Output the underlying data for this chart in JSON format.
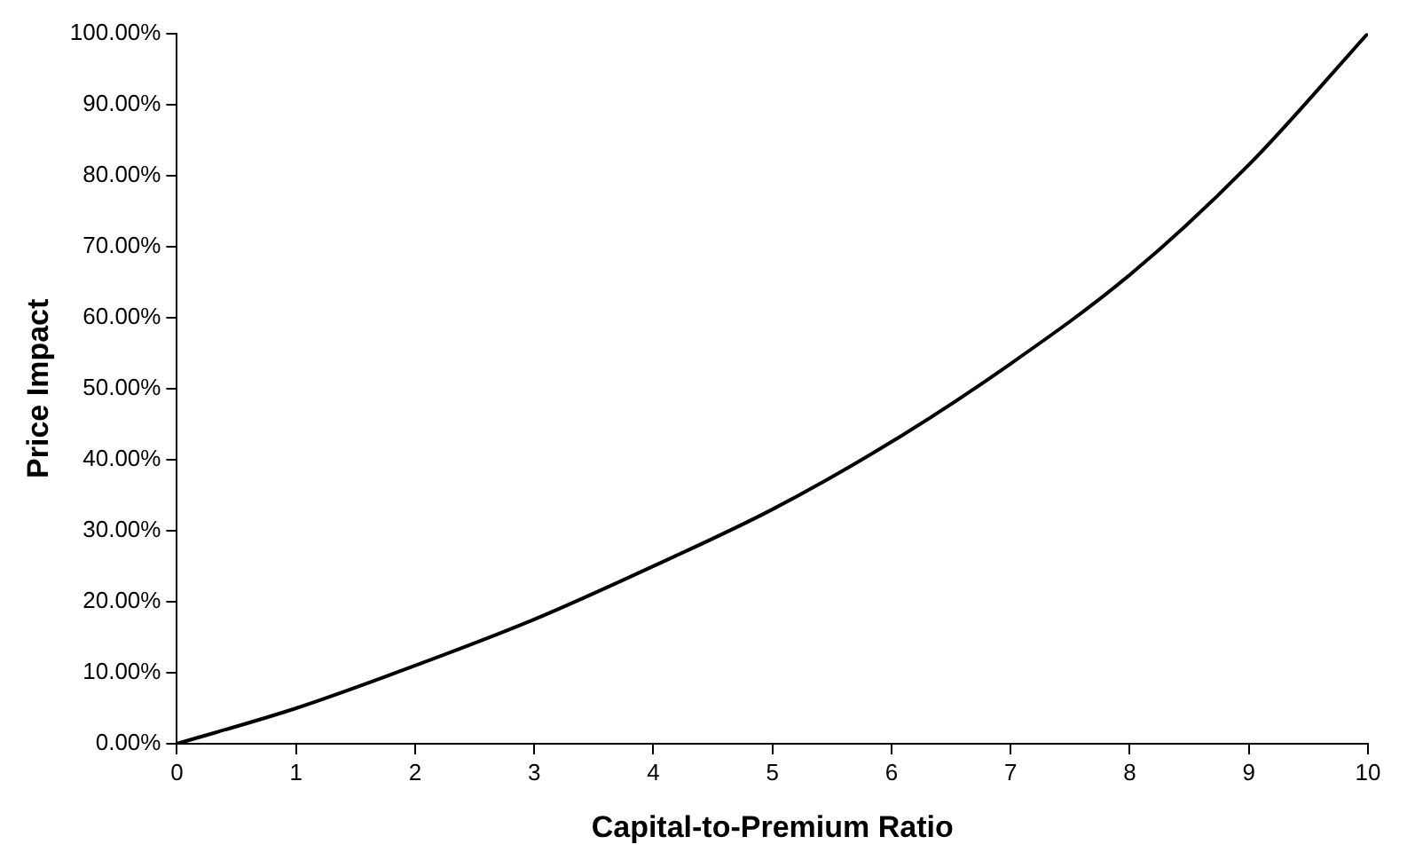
{
  "chart_data": {
    "type": "line",
    "xlabel": "Capital-to-Premium Ratio",
    "ylabel": "Price Impact",
    "x": [
      0,
      1,
      2,
      3,
      4,
      5,
      6,
      7,
      8,
      9,
      10
    ],
    "series": [
      {
        "color": "#000000",
        "values": [
          0,
          5,
          11,
          17.5,
          25,
          33,
          42.5,
          53.5,
          66,
          81.5,
          100
        ]
      }
    ],
    "xlim": [
      0,
      10
    ],
    "xticks": [
      0,
      1,
      2,
      3,
      4,
      5,
      6,
      7,
      8,
      9,
      10
    ],
    "ylim": [
      0,
      100
    ],
    "yticks": [
      {
        "value": 0,
        "label": "0.00%"
      },
      {
        "value": 10,
        "label": "10.00%"
      },
      {
        "value": 20,
        "label": "20.00%"
      },
      {
        "value": 30,
        "label": "30.00%"
      },
      {
        "value": 40,
        "label": "40.00%"
      },
      {
        "value": 50,
        "label": "50.00%"
      },
      {
        "value": 60,
        "label": "60.00%"
      },
      {
        "value": 70,
        "label": "70.00%"
      },
      {
        "value": 80,
        "label": "80.00%"
      },
      {
        "value": 90,
        "label": "90.00%"
      },
      {
        "value": 100,
        "label": "100.00%"
      }
    ],
    "marker": "none",
    "line_style": "solid",
    "grid": false,
    "legend": false
  }
}
